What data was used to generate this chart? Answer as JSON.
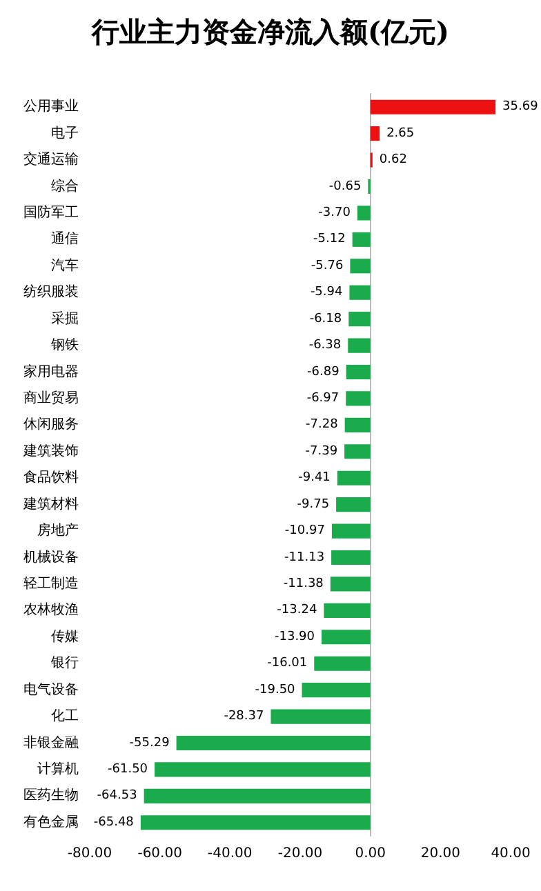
{
  "chart_data": {
    "type": "bar",
    "title": "行业主力资金净流入额(亿元)",
    "orientation": "horizontal",
    "value_labels": [
      "35.69",
      "2.65",
      "0.62",
      "-0.65",
      "-3.70",
      "-5.12",
      "-5.76",
      "-5.94",
      "-6.18",
      "-6.38",
      "-6.89",
      "-6.97",
      "-7.28",
      "-7.39",
      "-9.41",
      "-9.75",
      "-10.97",
      "-11.13",
      "-11.38",
      "-13.24",
      "-13.90",
      "-16.01",
      "-19.50",
      "-28.37",
      "-55.29",
      "-61.50",
      "-64.53",
      "-65.48"
    ],
    "categories": [
      "公用事业",
      "电子",
      "交通运输",
      "综合",
      "国防军工",
      "通信",
      "汽车",
      "纺织服装",
      "采掘",
      "钢铁",
      "家用电器",
      "商业贸易",
      "休闲服务",
      "建筑装饰",
      "食品饮料",
      "建筑材料",
      "房地产",
      "机械设备",
      "轻工制造",
      "农林牧渔",
      "传媒",
      "银行",
      "电气设备",
      "化工",
      "非银金融",
      "计算机",
      "医药生物",
      "有色金属"
    ],
    "values": [
      35.69,
      2.65,
      0.62,
      -0.65,
      -3.7,
      -5.12,
      -5.76,
      -5.94,
      -6.18,
      -6.38,
      -6.89,
      -6.97,
      -7.28,
      -7.39,
      -9.41,
      -9.75,
      -10.97,
      -11.13,
      -11.38,
      -13.24,
      -13.9,
      -16.01,
      -19.5,
      -28.37,
      -55.29,
      -61.5,
      -64.53,
      -65.48
    ],
    "colors": [
      "#ee1111",
      "#ee1111",
      "#ee1111",
      "#1aac4c",
      "#1aac4c",
      "#1aac4c",
      "#1aac4c",
      "#1aac4c",
      "#1aac4c",
      "#1aac4c",
      "#1aac4c",
      "#1aac4c",
      "#1aac4c",
      "#1aac4c",
      "#1aac4c",
      "#1aac4c",
      "#1aac4c",
      "#1aac4c",
      "#1aac4c",
      "#1aac4c",
      "#1aac4c",
      "#1aac4c",
      "#1aac4c",
      "#1aac4c",
      "#1aac4c",
      "#1aac4c",
      "#1aac4c",
      "#1aac4c"
    ],
    "xlim": [
      -80,
      40
    ],
    "xticks": [
      {
        "value": -80,
        "label": "-80.00"
      },
      {
        "value": -60,
        "label": "-60.00"
      },
      {
        "value": -40,
        "label": "-40.00"
      },
      {
        "value": -20,
        "label": "-20.00"
      },
      {
        "value": 0,
        "label": "0.00"
      },
      {
        "value": 20,
        "label": "20.00"
      },
      {
        "value": 40,
        "label": "40.00"
      }
    ]
  }
}
